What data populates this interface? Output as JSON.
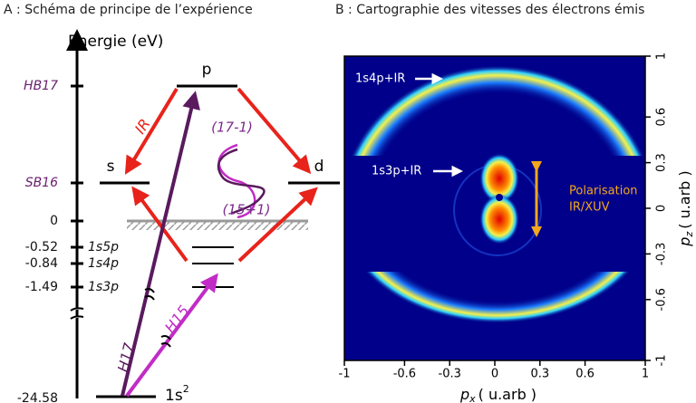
{
  "panel_a": {
    "title": "A : Schéma de principe de l’expérience",
    "axis_label": "Energie (eV)",
    "energy_ticks": [
      {
        "label": "HB17",
        "italic": true
      },
      {
        "label": "SB16",
        "italic": true
      },
      {
        "label": "0"
      },
      {
        "label": "-0.52",
        "state": "1s5p"
      },
      {
        "label": "-0.84",
        "state": "1s4p"
      },
      {
        "label": "-1.49",
        "state": "1s3p"
      },
      {
        "label": "-24.58"
      }
    ],
    "levels": {
      "p": "p",
      "s": "s",
      "d": "d",
      "ground": {
        "text": "1s",
        "sup": "2"
      }
    },
    "labels": {
      "ir": "IR",
      "h17": "H17",
      "h15": "H15",
      "h17_1": "(17-1)",
      "h15_1": "(15+1)"
    }
  },
  "panel_b": {
    "title": "B : Cartographie des vitesses des électrons émis",
    "xlim": [
      -1,
      1
    ],
    "ylim": [
      -1,
      1
    ],
    "xticks": [
      -1,
      -0.6,
      -0.3,
      0,
      0.3,
      0.6,
      1
    ],
    "yticks": [
      -1,
      -0.6,
      -0.3,
      0,
      0.3,
      0.6,
      1
    ],
    "x_label": {
      "symbol": "p",
      "subscript": "x",
      "unit": "( u.arb )"
    },
    "y_label": {
      "symbol": "p",
      "subscript": "z",
      "unit": "( u.arb )"
    },
    "annotations": {
      "ring_1s4p": "1s4p+IR",
      "ring_1s3p": "1s3p+IR",
      "polarisation": [
        "Polarisation",
        "IR/XUV"
      ]
    }
  }
}
